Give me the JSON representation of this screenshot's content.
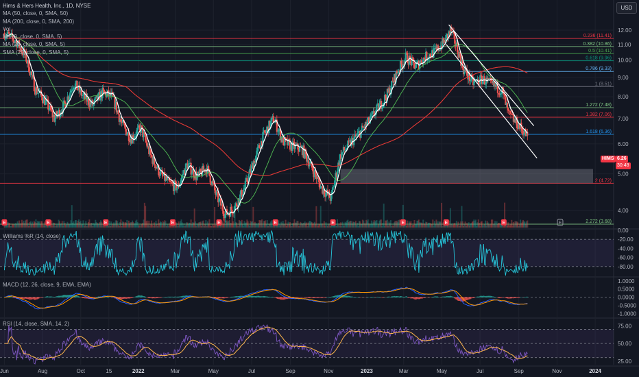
{
  "symbol": {
    "title": "Hims & Hers Health, Inc., 1D, NYSE",
    "ticker": "HIMS",
    "last_price": "6.26",
    "countdown": "30:48",
    "currency": "USD"
  },
  "indicator_legends": [
    "MA (50, close, 0, SMA, 50)",
    "MA (200, close, 0, SMA, 200)",
    "Vol",
    "MA (9, close, 0, SMA, 5)",
    "MA (20, close, 0, SMA, 5)",
    "SMA (20, close, 0, SMA, 5)"
  ],
  "colors": {
    "background": "#131722",
    "up": "#26a69a",
    "down": "#ef5350",
    "ma9": "#ffffff",
    "ma50": "#4caf50",
    "ma200": "#e53935",
    "fib_ext": "#ffffff",
    "williams": "#26c6da",
    "macd": "#2962ff",
    "macd_signal": "#ff9800",
    "rsi": "#7e57c2",
    "rsi_ma": "#ffb74d",
    "price_tag": "#f23645"
  },
  "chart_data": [
    {
      "type": "candlestick",
      "title": "Hims & Hers Health, Inc., 1D, NYSE",
      "x_axis_ticks": [
        "Jun",
        "Aug",
        "Oct",
        "15",
        "2022",
        "Mar",
        "May",
        "Jul",
        "Sep",
        "Nov",
        "2023",
        "Mar",
        "May",
        "Jul",
        "Sep",
        "Nov",
        "2024"
      ],
      "y_axis_ticks": [
        "12.00",
        "11.00",
        "10.00",
        "9.00",
        "8.00",
        "7.00",
        "6.00",
        "5.00",
        "4.00"
      ],
      "ylim": [
        3.6,
        12.6
      ],
      "scale": "log",
      "close_path": [
        [
          "2021-06-01",
          11.8
        ],
        [
          "2021-06-20",
          11.2
        ],
        [
          "2021-07-05",
          10.2
        ],
        [
          "2021-07-20",
          8.4
        ],
        [
          "2021-08-05",
          7.8
        ],
        [
          "2021-08-20",
          7.0
        ],
        [
          "2021-09-05",
          7.6
        ],
        [
          "2021-09-20",
          8.7
        ],
        [
          "2021-10-05",
          8.0
        ],
        [
          "2021-10-20",
          7.6
        ],
        [
          "2021-11-05",
          8.2
        ],
        [
          "2021-11-20",
          8.0
        ],
        [
          "2021-12-05",
          6.8
        ],
        [
          "2021-12-20",
          6.2
        ],
        [
          "2022-01-05",
          6.6
        ],
        [
          "2022-01-20",
          5.6
        ],
        [
          "2022-02-05",
          5.0
        ],
        [
          "2022-02-20",
          4.7
        ],
        [
          "2022-03-05",
          4.6
        ],
        [
          "2022-03-20",
          5.3
        ],
        [
          "2022-04-05",
          4.9
        ],
        [
          "2022-04-20",
          5.2
        ],
        [
          "2022-05-05",
          4.4
        ],
        [
          "2022-05-20",
          3.9
        ],
        [
          "2022-06-05",
          4.1
        ],
        [
          "2022-06-20",
          4.6
        ],
        [
          "2022-07-05",
          5.4
        ],
        [
          "2022-07-20",
          6.3
        ],
        [
          "2022-08-05",
          7.0
        ],
        [
          "2022-08-20",
          6.1
        ],
        [
          "2022-09-05",
          5.9
        ],
        [
          "2022-09-20",
          5.8
        ],
        [
          "2022-10-05",
          5.2
        ],
        [
          "2022-10-20",
          4.6
        ],
        [
          "2022-11-05",
          4.3
        ],
        [
          "2022-11-20",
          5.6
        ],
        [
          "2022-12-05",
          6.0
        ],
        [
          "2022-12-20",
          6.4
        ],
        [
          "2023-01-05",
          6.9
        ],
        [
          "2023-01-20",
          7.5
        ],
        [
          "2023-02-05",
          8.2
        ],
        [
          "2023-02-20",
          9.4
        ],
        [
          "2023-03-05",
          10.2
        ],
        [
          "2023-03-20",
          9.6
        ],
        [
          "2023-04-05",
          10.2
        ],
        [
          "2023-04-20",
          10.5
        ],
        [
          "2023-05-05",
          11.2
        ],
        [
          "2023-05-15",
          12.0
        ],
        [
          "2023-05-25",
          10.8
        ],
        [
          "2023-06-05",
          9.4
        ],
        [
          "2023-06-20",
          8.7
        ],
        [
          "2023-07-05",
          8.9
        ],
        [
          "2023-07-20",
          8.6
        ],
        [
          "2023-08-05",
          8.3
        ],
        [
          "2023-08-15",
          7.2
        ],
        [
          "2023-08-25",
          6.9
        ],
        [
          "2023-09-05",
          6.6
        ],
        [
          "2023-09-15",
          6.26
        ]
      ],
      "fib_levels": [
        {
          "label": "0.236 (11.41)",
          "value": 11.41,
          "color": "#f23645"
        },
        {
          "label": "0.382 (10.86)",
          "value": 10.86,
          "color": "#81c784"
        },
        {
          "label": "0.5 (10.41)",
          "value": 10.41,
          "color": "#4caf50"
        },
        {
          "label": "0.618 (9.96)",
          "value": 9.96,
          "color": "#089981"
        },
        {
          "label": "0.786 (9.33)",
          "value": 9.33,
          "color": "#64b5f6"
        },
        {
          "label": "1 (8.51)",
          "value": 8.51,
          "color": "#787b86"
        },
        {
          "label": "1.272 (7.48)",
          "value": 7.48,
          "color": "#81c784"
        },
        {
          "label": "1.382 (7.06)",
          "value": 7.06,
          "color": "#f23645"
        },
        {
          "label": "1.618 (6.36)",
          "value": 6.36,
          "color": "#2196f3"
        },
        {
          "label": "2 (4.72)",
          "value": 4.72,
          "color": "#f23645"
        },
        {
          "label": "2.272 (3.68)",
          "value": 3.68,
          "color": "#81c784"
        }
      ],
      "support_zone": [
        4.72,
        5.15
      ],
      "channel": {
        "upper": [
          [
            "2023-05-12",
            12.4
          ],
          [
            "2023-09-25",
            6.7
          ]
        ],
        "lower": [
          [
            "2023-05-08",
            11.0
          ],
          [
            "2023-09-30",
            5.5
          ]
        ]
      },
      "earnings_markers": [
        "2021-06-01",
        "2021-08-10",
        "2021-11-10",
        "2022-02-25",
        "2022-05-10",
        "2022-08-08",
        "2022-11-08",
        "2023-02-28",
        "2023-05-08",
        "2023-08-08",
        "2023-11-06"
      ]
    },
    {
      "type": "line",
      "title": "Williams %R (14, close)",
      "ylim": [
        -100,
        0
      ],
      "y_axis_ticks": [
        "0.00",
        "-20.00",
        "-40.00",
        "-60.00",
        "-80.00"
      ],
      "bands": [
        -20,
        -80
      ]
    },
    {
      "type": "line",
      "title": "MACD (12, 26, close, 9, EMA, EMA)",
      "ylim": [
        -1.2,
        1.2
      ],
      "y_axis_ticks": [
        "1.0000",
        "0.5000",
        "0.0000",
        "-0.5000",
        "-1.0000"
      ]
    },
    {
      "type": "line",
      "title": "RSI (14, close, SMA, 14, 2)",
      "ylim": [
        20,
        85
      ],
      "y_axis_ticks": [
        "75.00",
        "50.00",
        "25.00"
      ],
      "bands": [
        70,
        30
      ]
    }
  ]
}
